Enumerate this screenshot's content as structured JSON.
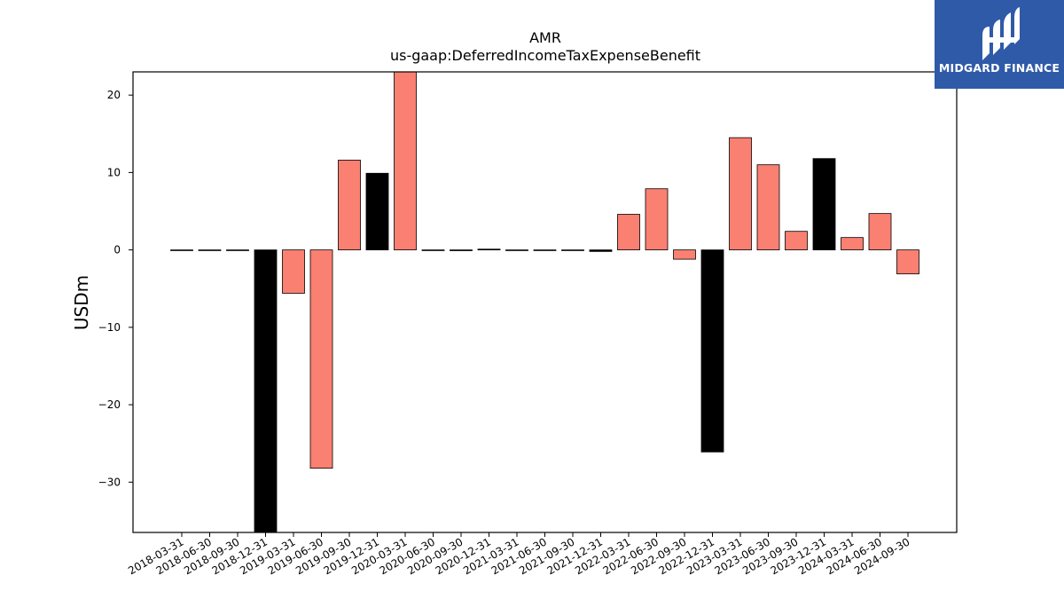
{
  "brand": {
    "name": "MIDGARD FINANCE",
    "background": "#2f5aa8",
    "icon": "midgard-logo-icon"
  },
  "chart_data": {
    "type": "bar",
    "title": "AMR",
    "subtitle": "us-gaap:DeferredIncomeTaxExpenseBenefit",
    "xlabel": "",
    "ylabel": "USDm",
    "ylim": [
      -36.5,
      23
    ],
    "yticks": [
      -30,
      -20,
      -10,
      0,
      10,
      20
    ],
    "grid": false,
    "categories": [
      "2018-03-31",
      "2018-06-30",
      "2018-09-30",
      "2018-12-31",
      "2019-03-31",
      "2019-06-30",
      "2019-09-30",
      "2019-12-31",
      "2020-03-31",
      "2020-06-30",
      "2020-09-30",
      "2020-12-31",
      "2021-03-31",
      "2021-06-30",
      "2021-09-30",
      "2021-12-31",
      "2022-03-31",
      "2022-06-30",
      "2022-09-30",
      "2022-12-31",
      "2023-03-31",
      "2023-06-30",
      "2023-09-30",
      "2023-12-31",
      "2024-03-31",
      "2024-06-30",
      "2024-09-30"
    ],
    "values": [
      0,
      0,
      0,
      -36.5,
      -5.6,
      -28.2,
      11.6,
      9.9,
      23,
      0,
      -0.1,
      0.1,
      0,
      0,
      0,
      -0.2,
      4.6,
      7.9,
      -1.2,
      -26.1,
      14.5,
      11,
      2.4,
      11.8,
      1.6,
      4.7,
      -3.1
    ],
    "bar_colors": [
      "#000000",
      "#000000",
      "#000000",
      "#000000",
      "#fa8072",
      "#fa8072",
      "#fa8072",
      "#000000",
      "#fa8072",
      "#000000",
      "#000000",
      "#000000",
      "#000000",
      "#000000",
      "#000000",
      "#000000",
      "#fa8072",
      "#fa8072",
      "#fa8072",
      "#000000",
      "#fa8072",
      "#fa8072",
      "#fa8072",
      "#000000",
      "#fa8072",
      "#fa8072",
      "#fa8072"
    ]
  }
}
